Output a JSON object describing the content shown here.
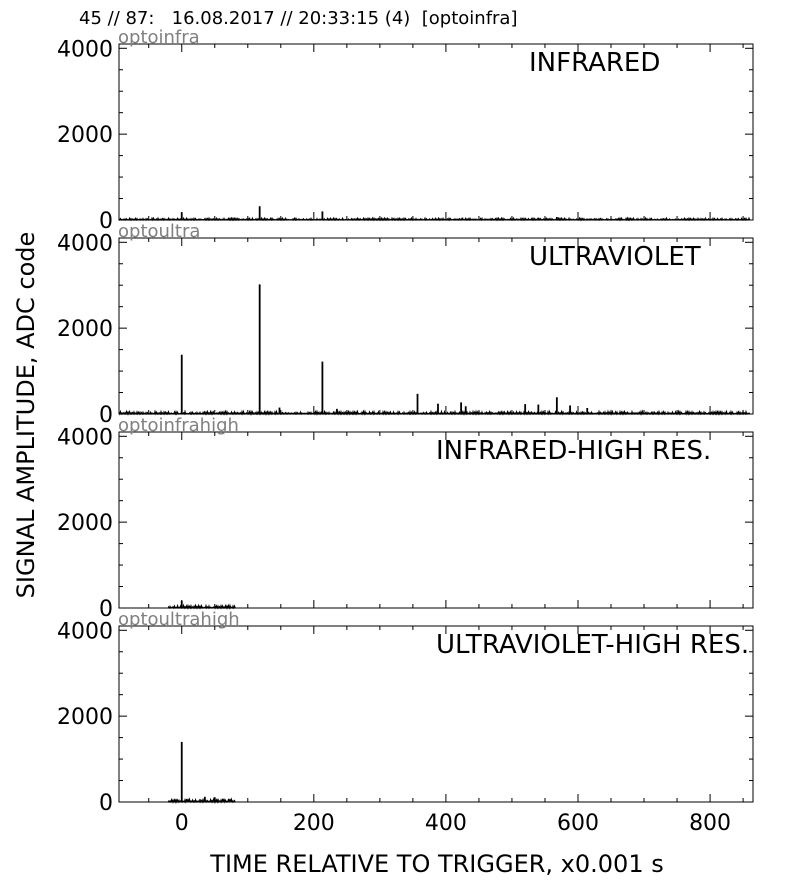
{
  "header": {
    "title": "45 // 87:   16.08.2017 // 20:33:15 (4)  [optoinfra]"
  },
  "chart_data": {
    "type": "line",
    "xlabel": "TIME RELATIVE TO TRIGGER,   x0.001 s",
    "ylabel": "SIGNAL AMPLITUDE,  ADC code",
    "xlim": [
      -95,
      865
    ],
    "ylim": [
      0,
      4100
    ],
    "x_ticks": [
      "0",
      "200",
      "400",
      "600",
      "800"
    ],
    "x_tick_values": [
      0,
      200,
      400,
      600,
      800
    ],
    "y_ticks": [
      "0",
      "2000",
      "4000"
    ],
    "y_tick_values": [
      0,
      2000,
      4000
    ],
    "grid": false,
    "panels": [
      {
        "channel": "optoinfra",
        "label": "INFRARED",
        "x_range": [
          -95,
          860
        ],
        "baseline": 30,
        "peaks": [
          {
            "x": 0,
            "y": 180
          },
          {
            "x": 118,
            "y": 320
          },
          {
            "x": 213,
            "y": 200
          },
          {
            "x": 425,
            "y": 55
          },
          {
            "x": 540,
            "y": 55
          },
          {
            "x": 568,
            "y": 70
          }
        ]
      },
      {
        "channel": "optoultra",
        "label": "ULTRAVIOLET",
        "x_range": [
          -95,
          860
        ],
        "baseline": 40,
        "peaks": [
          {
            "x": 0,
            "y": 1380
          },
          {
            "x": 118,
            "y": 3020
          },
          {
            "x": 148,
            "y": 150
          },
          {
            "x": 213,
            "y": 1220
          },
          {
            "x": 235,
            "y": 120
          },
          {
            "x": 357,
            "y": 470
          },
          {
            "x": 388,
            "y": 240
          },
          {
            "x": 423,
            "y": 270
          },
          {
            "x": 430,
            "y": 180
          },
          {
            "x": 520,
            "y": 230
          },
          {
            "x": 540,
            "y": 220
          },
          {
            "x": 568,
            "y": 390
          },
          {
            "x": 588,
            "y": 200
          },
          {
            "x": 614,
            "y": 140
          }
        ]
      },
      {
        "channel": "optoinfrahigh",
        "label": "INFRARED-HIGH RES.",
        "x_range": [
          -20,
          80
        ],
        "baseline": 40,
        "peaks": [
          {
            "x": 0,
            "y": 170
          }
        ]
      },
      {
        "channel": "optoultrahigh",
        "label": "ULTRAVIOLET-HIGH RES.",
        "x_range": [
          -20,
          80
        ],
        "baseline": 50,
        "peaks": [
          {
            "x": 0,
            "y": 1400
          },
          {
            "x": 35,
            "y": 120
          },
          {
            "x": 50,
            "y": 110
          }
        ]
      }
    ]
  }
}
